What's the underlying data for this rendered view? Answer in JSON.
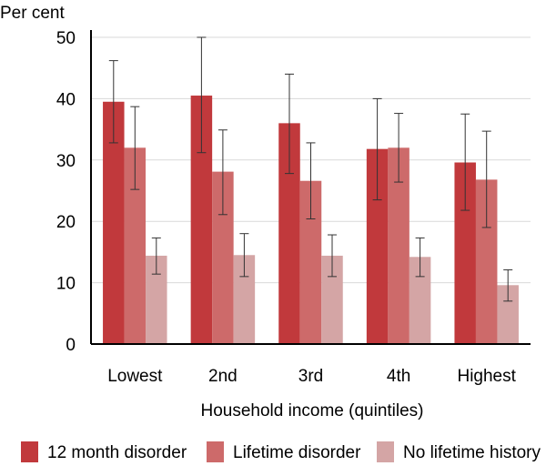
{
  "chart_data": {
    "type": "bar",
    "ylabel": "Per cent",
    "xlabel": "Household income (quintiles)",
    "ylim": [
      0,
      50
    ],
    "yticks": [
      0,
      10,
      20,
      30,
      40,
      50
    ],
    "grid": true,
    "legend_position": "bottom",
    "categories": [
      "Lowest",
      "2nd",
      "3rd",
      "4th",
      "Highest"
    ],
    "series": [
      {
        "name": "12 month disorder",
        "color": "#c1393c",
        "values": [
          39.5,
          40.5,
          36.0,
          31.8,
          29.6
        ],
        "error_low": [
          32.8,
          31.2,
          27.8,
          23.5,
          21.8
        ],
        "error_high": [
          46.2,
          50.0,
          44.0,
          40.0,
          37.5
        ]
      },
      {
        "name": "Lifetime disorder",
        "color": "#cd6a6a",
        "values": [
          32.0,
          28.1,
          26.6,
          32.0,
          26.8
        ],
        "error_low": [
          25.2,
          21.1,
          20.4,
          26.4,
          19.0
        ],
        "error_high": [
          38.7,
          34.9,
          32.8,
          37.6,
          34.7
        ]
      },
      {
        "name": "No lifetime history",
        "color": "#d4a5a5",
        "values": [
          14.4,
          14.5,
          14.4,
          14.2,
          9.6
        ],
        "error_low": [
          11.4,
          11.0,
          11.0,
          11.0,
          7.0
        ],
        "error_high": [
          17.3,
          18.0,
          17.8,
          17.3,
          12.1
        ]
      }
    ]
  }
}
